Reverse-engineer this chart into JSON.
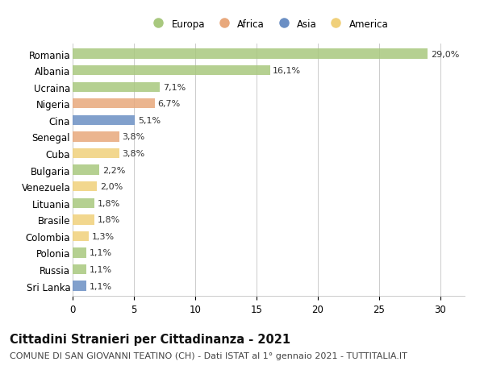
{
  "countries": [
    "Romania",
    "Albania",
    "Ucraina",
    "Nigeria",
    "Cina",
    "Senegal",
    "Cuba",
    "Bulgaria",
    "Venezuela",
    "Lituania",
    "Brasile",
    "Colombia",
    "Polonia",
    "Russia",
    "Sri Lanka"
  ],
  "values": [
    29.0,
    16.1,
    7.1,
    6.7,
    5.1,
    3.8,
    3.8,
    2.2,
    2.0,
    1.8,
    1.8,
    1.3,
    1.1,
    1.1,
    1.1
  ],
  "continents": [
    "Europa",
    "Europa",
    "Europa",
    "Africa",
    "Asia",
    "Africa",
    "America",
    "Europa",
    "America",
    "Europa",
    "America",
    "America",
    "Europa",
    "Europa",
    "Asia"
  ],
  "colors": {
    "Europa": "#a8c87e",
    "Africa": "#e8a87c",
    "Asia": "#6b8fc4",
    "America": "#f0d07a"
  },
  "legend_order": [
    "Europa",
    "Africa",
    "Asia",
    "America"
  ],
  "xlim": [
    0,
    32
  ],
  "xticks": [
    0,
    5,
    10,
    15,
    20,
    25,
    30
  ],
  "title": "Cittadini Stranieri per Cittadinanza - 2021",
  "subtitle": "COMUNE DI SAN GIOVANNI TEATINO (CH) - Dati ISTAT al 1° gennaio 2021 - TUTTITALIA.IT",
  "bg_color": "#ffffff",
  "bar_height": 0.6,
  "label_fontsize": 8,
  "tick_fontsize": 8.5,
  "title_fontsize": 10.5,
  "subtitle_fontsize": 8
}
